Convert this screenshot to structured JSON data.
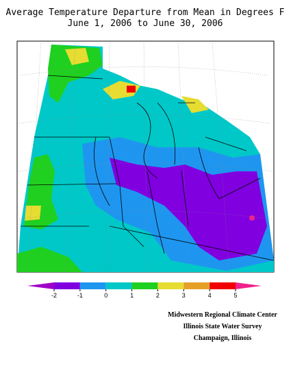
{
  "title": [
    "Average Temperature Departure from Mean in Degrees F",
    "June 1, 2006 to June 30, 2006"
  ],
  "legend": {
    "ticks": [
      -2,
      -1,
      0,
      1,
      2,
      3,
      4,
      5
    ],
    "below_color": "#a000c8",
    "colors": [
      "#8000e0",
      "#1e96f0",
      "#00c8c8",
      "#20d020",
      "#e6dc32",
      "#e6a028",
      "#f00000"
    ],
    "above_color": "#f0208c"
  },
  "credits": [
    "Midwestern Regional Climate Center",
    "Illinois State Water Survey",
    "Champaign, Illinois"
  ]
}
